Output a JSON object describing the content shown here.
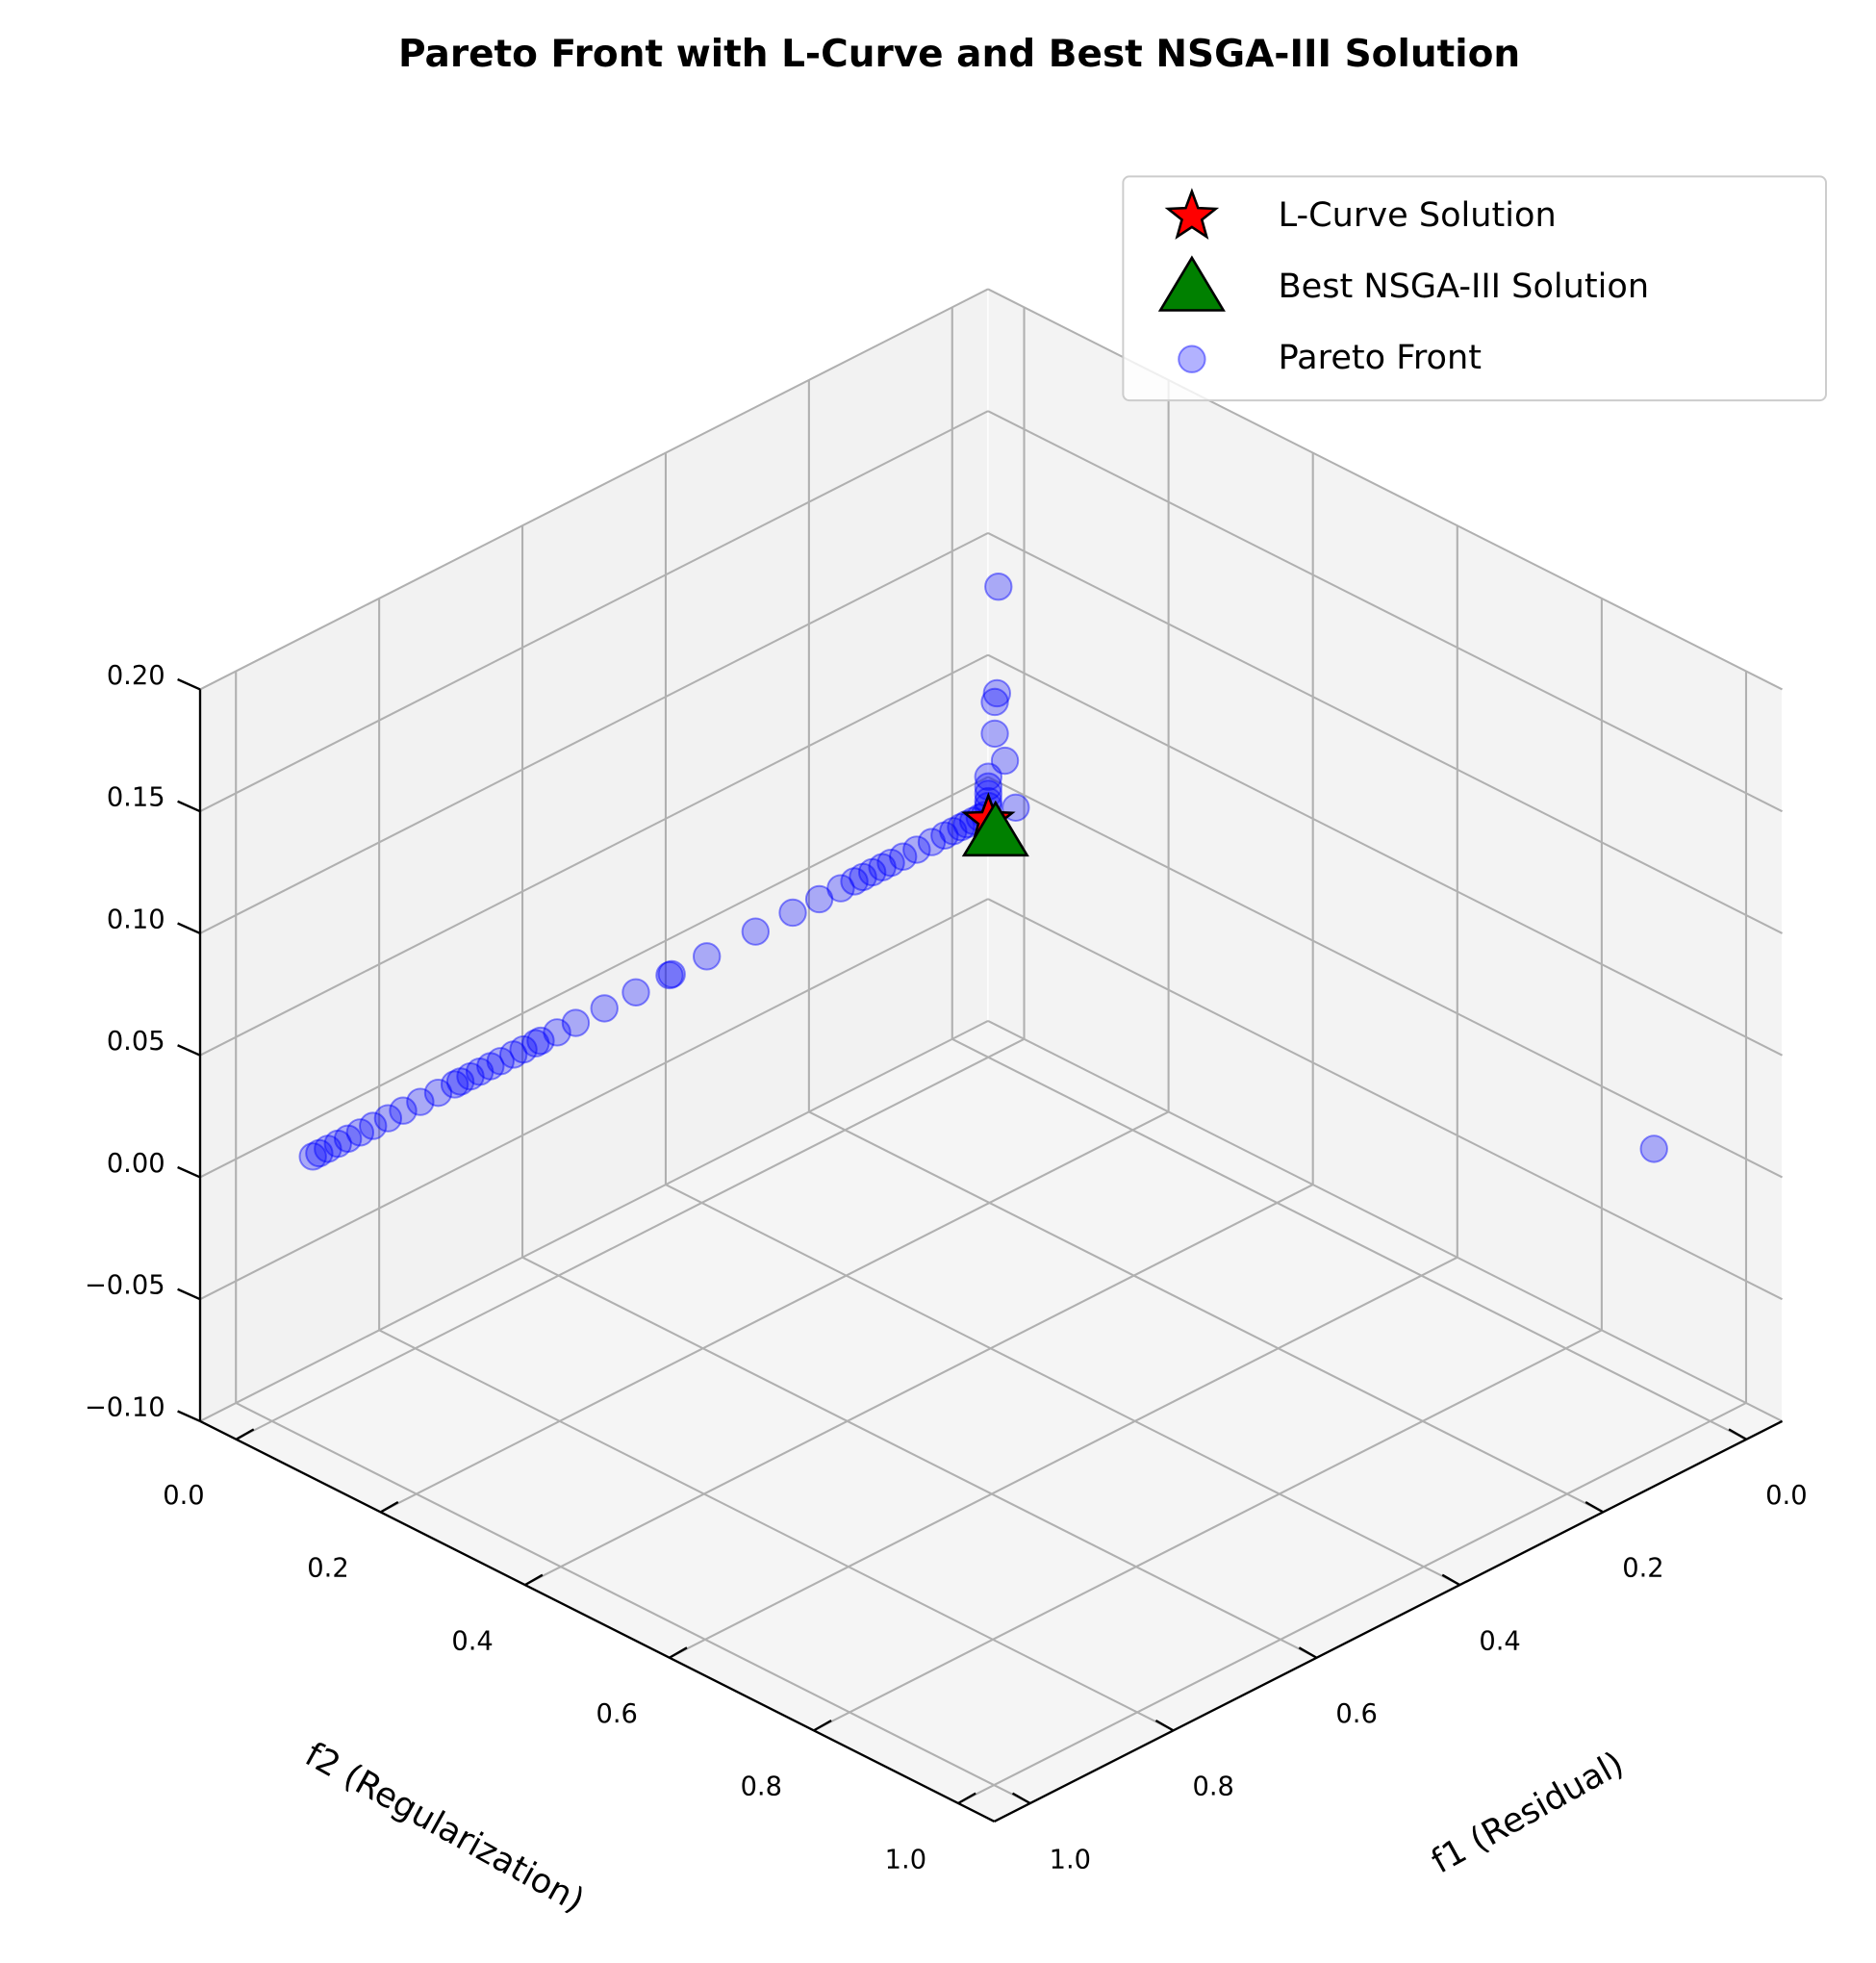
{
  "chart_data": {
    "type": "scatter3d",
    "title": "Pareto Front with L-Curve and Best NSGA-III Solution",
    "xlabel": "f1 (Residual)",
    "ylabel": "f2 (Regularization)",
    "xlim": [
      -0.05,
      1.05
    ],
    "ylim": [
      -0.05,
      1.05
    ],
    "zlim": [
      -0.1,
      0.2
    ],
    "xticks": [
      {
        "value": 0,
        "label": "0.0"
      },
      {
        "value": 0.2,
        "label": "0.2"
      },
      {
        "value": 0.4,
        "label": "0.4"
      },
      {
        "value": 0.6,
        "label": "0.6"
      },
      {
        "value": 0.8,
        "label": "0.8"
      },
      {
        "value": 1,
        "label": "1.0"
      }
    ],
    "yticks": [
      {
        "value": 0,
        "label": "0.0"
      },
      {
        "value": 0.2,
        "label": "0.2"
      },
      {
        "value": 0.4,
        "label": "0.4"
      },
      {
        "value": 0.6,
        "label": "0.6"
      },
      {
        "value": 0.8,
        "label": "0.8"
      },
      {
        "value": 1,
        "label": "1.0"
      }
    ],
    "zticks": [
      {
        "value": -0.1,
        "label": "−0.10"
      },
      {
        "value": -0.05,
        "label": "−0.05"
      },
      {
        "value": 0,
        "label": "0.00"
      },
      {
        "value": 0.05,
        "label": "0.05"
      },
      {
        "value": 0.1,
        "label": "0.10"
      },
      {
        "value": 0.15,
        "label": "0.15"
      },
      {
        "value": 0.2,
        "label": "0.20"
      }
    ],
    "grid": true,
    "legend": "upper right",
    "series": [
      {
        "name": "L-Curve Solution",
        "color": "red",
        "marker": "star",
        "x": [
          0.01
        ],
        "y": [
          0.01
        ],
        "z": [
          0
        ]
      },
      {
        "name": "Best NSGA-III Solution",
        "color": "green",
        "marker": "triangle",
        "x": [
          0.005
        ],
        "y": [
          0.015
        ],
        "z": [
          -0.005
        ]
      },
      {
        "name": "Pareto Front",
        "color": "blue",
        "marker": "circle",
        "x": [
          0.943,
          0.934,
          0.922,
          0.908,
          0.894,
          0.877,
          0.859,
          0.838,
          0.817,
          0.793,
          0.768,
          0.745,
          0.737,
          0.723,
          0.71,
          0.695,
          0.681,
          0.663,
          0.649,
          0.632,
          0.625,
          0.602,
          0.576,
          0.536,
          0.492,
          0.445,
          0.442,
          0.393,
          0.325,
          0.273,
          0.236,
          0.206,
          0.187,
          0.175,
          0.162,
          0.148,
          0.136,
          0.119,
          0.1,
          0.079,
          0.061,
          0.049,
          0.038,
          0.03,
          0.021,
          0.012,
          0.005,
          0,
          0,
          0,
          0,
          0,
          0,
          0,
          0,
          0,
          0,
          0,
          0
        ],
        "y": [
          0,
          0,
          0,
          0,
          0,
          0,
          0,
          0,
          0,
          0,
          0,
          0,
          0,
          0,
          0,
          0,
          0,
          0,
          0,
          0,
          0,
          0,
          0,
          0,
          0,
          0,
          0,
          0,
          0,
          0,
          0,
          0,
          0,
          0,
          0,
          0,
          0,
          0,
          0,
          0,
          0,
          0,
          0,
          0,
          0,
          0,
          0,
          0.014,
          0.012,
          0.009,
          0.009,
          0.023,
          0.038,
          0,
          0,
          0,
          0,
          0,
          0.922
        ],
        "z": [
          0,
          0,
          0,
          0,
          0,
          0,
          0,
          0,
          0,
          0,
          0,
          0,
          0,
          0,
          0,
          0,
          0,
          0,
          0,
          0,
          0,
          0,
          0,
          0,
          0,
          0,
          0,
          0,
          0,
          0,
          0,
          0,
          0,
          0,
          0,
          0,
          0,
          0,
          0,
          0,
          0,
          0,
          0,
          0,
          0,
          0,
          0,
          0.095,
          0.051,
          0.047,
          0.034,
          0.025,
          0.008,
          0.015,
          0.011,
          0.008,
          0.005,
          0.003,
          0
        ]
      }
    ]
  }
}
